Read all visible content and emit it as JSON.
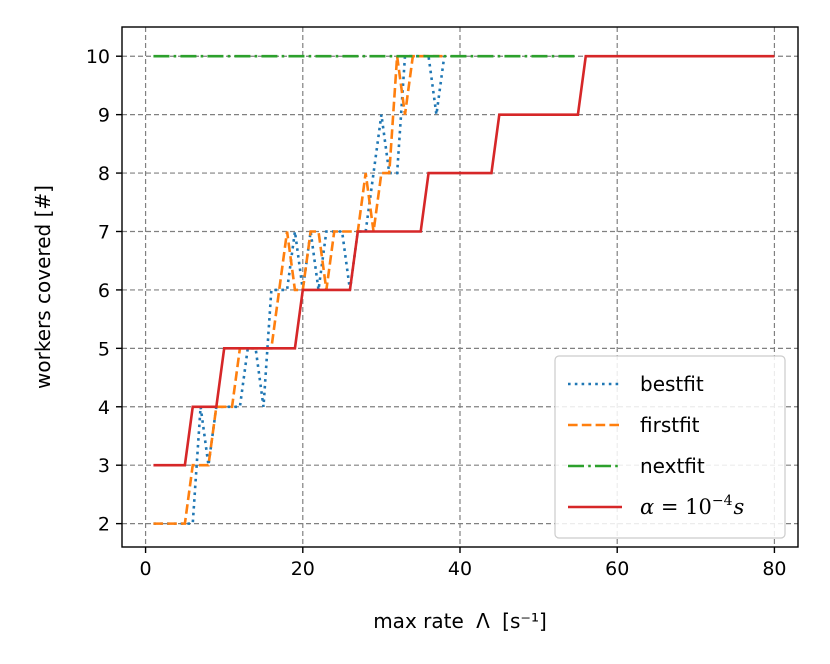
{
  "chart_data": {
    "type": "line",
    "title": "",
    "xlabel": "max rate",
    "xlabel_symbol": "Λ",
    "xlabel_unit": "[s⁻¹]",
    "ylabel": "workers covered [#]",
    "xlim": [
      -3,
      83
    ],
    "ylim": [
      1.6,
      10.5
    ],
    "xticks": [
      0,
      20,
      40,
      60,
      80
    ],
    "yticks": [
      2,
      3,
      4,
      5,
      6,
      7,
      8,
      9,
      10
    ],
    "grid": true,
    "legend_position": "bottom-right",
    "series": [
      {
        "name": "bestfit",
        "label": "bestfit",
        "color": "#1f77b4",
        "style": "dotted",
        "x": [
          1,
          2,
          3,
          4,
          5,
          6,
          7,
          8,
          9,
          10,
          11,
          12,
          13,
          14,
          15,
          16,
          17,
          18,
          19,
          20,
          21,
          22,
          23,
          24,
          25,
          26,
          27,
          28,
          29,
          30,
          31,
          32,
          33,
          34,
          35,
          36,
          37,
          38
        ],
        "y": [
          2,
          2,
          2,
          2,
          2,
          2,
          4,
          3,
          4,
          4,
          4,
          4,
          5,
          5,
          4,
          6,
          6,
          6,
          7,
          6,
          7,
          6,
          7,
          7,
          7,
          6,
          7,
          7,
          8,
          9,
          8,
          8,
          10,
          10,
          10,
          10,
          9,
          10
        ]
      },
      {
        "name": "firstfit",
        "label": "firstfit",
        "color": "#ff7f0e",
        "style": "dashed",
        "x": [
          1,
          2,
          3,
          4,
          5,
          6,
          7,
          8,
          9,
          10,
          11,
          12,
          13,
          14,
          15,
          16,
          17,
          18,
          19,
          20,
          21,
          22,
          23,
          24,
          25,
          26,
          27,
          28,
          29,
          30,
          31,
          32,
          33,
          34,
          35,
          36,
          37,
          38
        ],
        "y": [
          2,
          2,
          2,
          2,
          2,
          3,
          3,
          3,
          4,
          4,
          4,
          5,
          5,
          5,
          5,
          5,
          6,
          7,
          6,
          6,
          7,
          7,
          6,
          7,
          7,
          7,
          7,
          8,
          7,
          8,
          8,
          10,
          9,
          10,
          10,
          10,
          10,
          10
        ]
      },
      {
        "name": "nextfit",
        "label": "nextfit",
        "color": "#2ca02c",
        "style": "dashdot",
        "x": [
          1,
          55
        ],
        "y": [
          10,
          10
        ]
      },
      {
        "name": "alpha",
        "label": "α = 10⁻⁴s",
        "label_parts": {
          "lhs": "α",
          "eq": " = 10",
          "exp": "−4",
          "unit": "s"
        },
        "color": "#d62728",
        "style": "solid",
        "x": [
          1,
          5,
          6,
          9,
          10,
          15,
          16,
          19,
          20,
          26,
          27,
          30,
          31,
          35,
          36,
          44,
          45,
          55,
          56,
          80
        ],
        "y": [
          3,
          3,
          4,
          4,
          5,
          5,
          5,
          5,
          6,
          6,
          7,
          7,
          7,
          7,
          8,
          8,
          9,
          9,
          10,
          10
        ]
      }
    ]
  }
}
